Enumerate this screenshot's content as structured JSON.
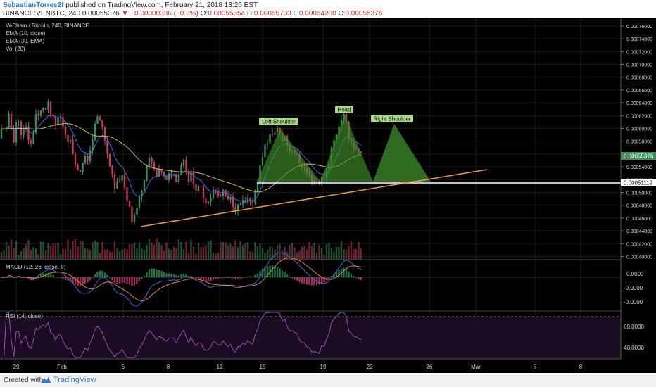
{
  "header": {
    "author": "SebastianTorres2f",
    "published": "published on TradingView.com, February 21, 2018 13:26 EST",
    "symbol": "BINANCE:VENBTC, 240",
    "last": "0.00055376",
    "change": "−0.00000336 (−0.6%)",
    "o_label": "O:",
    "o": "0.00055354",
    "h_label": "H:",
    "h": "0.00055703",
    "l_label": "L:",
    "l": "0.00054200",
    "c_label": "C:",
    "c": "0.00055376"
  },
  "legend": {
    "title": "VeChain / Bitcoin, 240, BINANCE",
    "ema10": "EMA (10, close)",
    "ema30": "EMA (30, EMA)",
    "vol": "Vol (20)"
  },
  "annotations": {
    "left_shoulder": "Left Shoulder",
    "head": "Head",
    "right_shoulder": "Right Shoulder"
  },
  "price_tags": {
    "current": "0.00055376",
    "neckline": "0.00051119"
  },
  "macd": {
    "label": "MACD (12, 26, close, 9)",
    "ticks": [
      "0.0000",
      "-0.0000",
      "-0.0000"
    ]
  },
  "rsi": {
    "label": "RSI (14, close)",
    "ticks": [
      "60.0000",
      "40.0000"
    ]
  },
  "x_axis": [
    "29",
    "Feb",
    "5",
    "8",
    "12",
    "15",
    "19",
    "22",
    "26",
    "Mar",
    "5",
    "8"
  ],
  "footer": {
    "made_with": "Created with",
    "brand": "TradingView"
  },
  "colors": {
    "background": "#000000",
    "up": "#3a8f5a",
    "down": "#c83a5c",
    "ema10": "#3a6fd8",
    "ema30": "#c8b84a",
    "trendline": "#f0a030",
    "pattern_fill": "#3f8f2a",
    "rsi_line": "#9a4fb0"
  },
  "chart_data": {
    "type": "candlestick",
    "title": "VeChain / Bitcoin, 240, BINANCE",
    "ylim": [
      0.000395,
      0.000772
    ],
    "y_ticks": [
      0.0004,
      0.00042,
      0.00044,
      0.00046,
      0.00048,
      0.0005,
      0.00052,
      0.00054,
      0.00056,
      0.00058,
      0.0006,
      0.00062,
      0.00064,
      0.00066,
      0.00068,
      0.0007,
      0.00072,
      0.00074,
      0.00076
    ],
    "x_ticks": [
      "29",
      "Feb",
      "5",
      "8",
      "12",
      "15",
      "19",
      "22",
      "26",
      "Mar",
      "5",
      "8"
    ],
    "last_close": 0.00055376,
    "neckline": 0.00051119,
    "price_path": [
      [
        0,
        0.000585
      ],
      [
        4,
        0.00061
      ],
      [
        8,
        0.00059
      ],
      [
        12,
        0.00062
      ],
      [
        16,
        0.0006
      ],
      [
        20,
        0.00058
      ],
      [
        24,
        0.00062
      ],
      [
        28,
        0.0006
      ],
      [
        32,
        0.00059
      ],
      [
        36,
        0.000605
      ],
      [
        40,
        0.000585
      ],
      [
        44,
        0.000575
      ],
      [
        48,
        0.0006
      ],
      [
        52,
        0.00063
      ],
      [
        56,
        0.00061
      ],
      [
        60,
        0.00064
      ],
      [
        64,
        0.000625
      ],
      [
        68,
        0.000638
      ],
      [
        72,
        0.000622
      ],
      [
        76,
        0.000612
      ],
      [
        80,
        0.0006
      ],
      [
        84,
        0.000625
      ],
      [
        88,
        0.00061
      ],
      [
        92,
        0.000595
      ],
      [
        96,
        0.000585
      ],
      [
        100,
        0.000578
      ],
      [
        104,
        0.00056
      ],
      [
        108,
        0.000545
      ],
      [
        112,
        0.000525
      ],
      [
        116,
        0.000545
      ],
      [
        120,
        0.00056
      ],
      [
        124,
        0.00054
      ],
      [
        128,
        0.00057
      ],
      [
        132,
        0.000585
      ],
      [
        136,
        0.00061
      ],
      [
        140,
        0.00062
      ],
      [
        144,
        0.000605
      ],
      [
        148,
        0.00059
      ],
      [
        152,
        0.00056
      ],
      [
        156,
        0.000545
      ],
      [
        160,
        0.00052
      ],
      [
        164,
        0.0005
      ],
      [
        168,
        0.000518
      ],
      [
        172,
        0.00053
      ],
      [
        176,
        0.00051
      ],
      [
        180,
        0.00049
      ],
      [
        184,
        0.00048
      ],
      [
        188,
        0.000455
      ],
      [
        192,
        0.00047
      ],
      [
        196,
        0.00048
      ],
      [
        200,
        0.0005
      ],
      [
        204,
        0.00052
      ],
      [
        208,
        0.00054
      ],
      [
        212,
        0.00055
      ],
      [
        216,
        0.000545
      ],
      [
        220,
        0.00053
      ],
      [
        224,
        0.00052
      ],
      [
        228,
        0.00054
      ],
      [
        232,
        0.000525
      ],
      [
        236,
        0.000515
      ],
      [
        240,
        0.000525
      ],
      [
        244,
        0.000535
      ],
      [
        248,
        0.000525
      ],
      [
        252,
        0.00052
      ],
      [
        256,
        0.00054
      ],
      [
        260,
        0.000555
      ],
      [
        264,
        0.00054
      ],
      [
        268,
        0.00052
      ],
      [
        272,
        0.00053
      ],
      [
        276,
        0.000515
      ],
      [
        280,
        0.0005
      ],
      [
        284,
        0.00051
      ],
      [
        288,
        0.0005
      ],
      [
        292,
        0.000485
      ],
      [
        296,
        0.00049
      ],
      [
        300,
        0.000495
      ],
      [
        304,
        0.000505
      ],
      [
        308,
        0.000498
      ],
      [
        312,
        0.00049
      ],
      [
        316,
        0.0005
      ],
      [
        320,
        0.000495
      ],
      [
        324,
        0.000485
      ],
      [
        328,
        0.00049
      ],
      [
        332,
        0.00048
      ],
      [
        336,
        0.000475
      ],
      [
        340,
        0.000478
      ],
      [
        344,
        0.000485
      ],
      [
        348,
        0.00048
      ],
      [
        352,
        0.000488
      ],
      [
        356,
        0.00048
      ],
      [
        360,
        0.00049
      ],
      [
        364,
        0.00051
      ],
      [
        368,
        0.00053
      ],
      [
        372,
        0.000555
      ],
      [
        376,
        0.00057
      ],
      [
        380,
        0.00058
      ],
      [
        384,
        0.00059
      ],
      [
        388,
        0.000585
      ],
      [
        392,
        0.000605
      ],
      [
        396,
        0.000595
      ],
      [
        400,
        0.00058
      ],
      [
        404,
        0.00059
      ],
      [
        408,
        0.000575
      ],
      [
        412,
        0.000565
      ],
      [
        416,
        0.00057
      ],
      [
        420,
        0.00056
      ],
      [
        424,
        0.00055
      ],
      [
        428,
        0.000545
      ],
      [
        432,
        0.00054
      ],
      [
        436,
        0.00053
      ],
      [
        440,
        0.000525
      ],
      [
        444,
        0.00052
      ],
      [
        448,
        0.000518
      ],
      [
        452,
        0.000515
      ],
      [
        456,
        0.00052
      ],
      [
        460,
        0.000525
      ],
      [
        464,
        0.000535
      ],
      [
        468,
        0.00055
      ],
      [
        472,
        0.000575
      ],
      [
        476,
        0.000585
      ],
      [
        480,
        0.0006
      ],
      [
        484,
        0.000615
      ],
      [
        488,
        0.00062
      ],
      [
        492,
        0.000605
      ],
      [
        496,
        0.000585
      ],
      [
        500,
        0.000575
      ],
      [
        504,
        0.00057
      ],
      [
        508,
        0.00056
      ],
      [
        512,
        0.00056
      ],
      [
        516,
        0.000552
      ]
    ]
  }
}
